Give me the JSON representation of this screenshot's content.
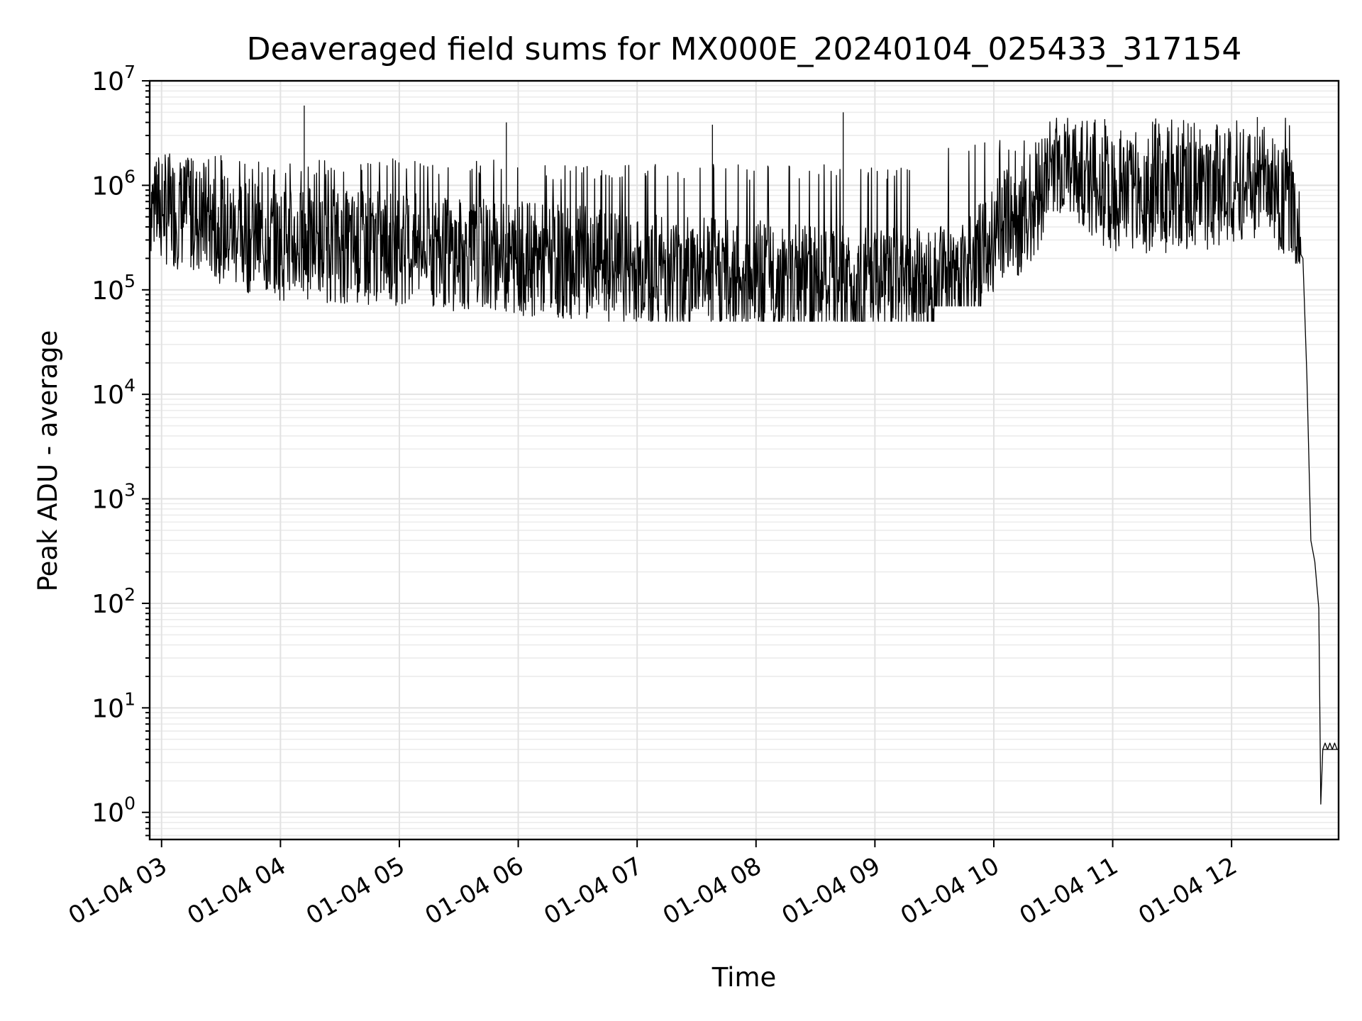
{
  "chart_data": {
    "type": "line",
    "title": "Deaveraged field sums for MX000E_20240104_025433_317154",
    "xlabel": "Time",
    "ylabel": "Peak ADU - average",
    "yscale": "log",
    "ylim": [
      0.55,
      10000000
    ],
    "xlim": [
      "2024-01-04 02:54",
      "2024-01-04 12:54"
    ],
    "grid": true,
    "legend": "none",
    "line_color": "#000000",
    "x_ticks": [
      {
        "value": "2024-01-04 03:00",
        "label": "01-04 03"
      },
      {
        "value": "2024-01-04 04:00",
        "label": "01-04 04"
      },
      {
        "value": "2024-01-04 05:00",
        "label": "01-04 05"
      },
      {
        "value": "2024-01-04 06:00",
        "label": "01-04 06"
      },
      {
        "value": "2024-01-04 07:00",
        "label": "01-04 07"
      },
      {
        "value": "2024-01-04 08:00",
        "label": "01-04 08"
      },
      {
        "value": "2024-01-04 09:00",
        "label": "01-04 09"
      },
      {
        "value": "2024-01-04 10:00",
        "label": "01-04 10"
      },
      {
        "value": "2024-01-04 11:00",
        "label": "01-04 11"
      },
      {
        "value": "2024-01-04 12:00",
        "label": "01-04 12"
      }
    ],
    "y_ticks": [
      {
        "value": 1,
        "base": "10",
        "exp": "0"
      },
      {
        "value": 10,
        "base": "10",
        "exp": "1"
      },
      {
        "value": 100,
        "base": "10",
        "exp": "2"
      },
      {
        "value": 1000,
        "base": "10",
        "exp": "3"
      },
      {
        "value": 10000,
        "base": "10",
        "exp": "4"
      },
      {
        "value": 100000,
        "base": "10",
        "exp": "5"
      },
      {
        "value": 1000000,
        "base": "10",
        "exp": "6"
      },
      {
        "value": 10000000,
        "base": "10",
        "exp": "7"
      }
    ],
    "series": [
      {
        "name": "",
        "points": [
          [
            "2024-01-04 02:54",
            700000
          ],
          [
            "2024-01-04 03:00",
            600000
          ],
          [
            "2024-01-04 03:10",
            550000
          ],
          [
            "2024-01-04 03:20",
            480000
          ],
          [
            "2024-01-04 03:30",
            400000
          ],
          [
            "2024-01-04 03:45",
            320000
          ],
          [
            "2024-01-04 04:00",
            280000
          ],
          [
            "2024-01-04 04:30",
            260000
          ],
          [
            "2024-01-04 05:00",
            250000
          ],
          [
            "2024-01-04 05:30",
            220000
          ],
          [
            "2024-01-04 06:00",
            200000
          ],
          [
            "2024-01-04 06:30",
            180000
          ],
          [
            "2024-01-04 07:00",
            160000
          ],
          [
            "2024-01-04 07:30",
            150000
          ],
          [
            "2024-01-04 08:00",
            130000
          ],
          [
            "2024-01-04 08:30",
            120000
          ],
          [
            "2024-01-04 09:00",
            110000
          ],
          [
            "2024-01-04 09:30",
            110000
          ],
          [
            "2024-01-04 09:50",
            150000
          ],
          [
            "2024-01-04 10:00",
            350000
          ],
          [
            "2024-01-04 10:15",
            500000
          ],
          [
            "2024-01-04 10:30",
            1500000
          ],
          [
            "2024-01-04 10:45",
            1100000
          ],
          [
            "2024-01-04 11:00",
            800000
          ],
          [
            "2024-01-04 11:30",
            800000
          ],
          [
            "2024-01-04 12:00",
            900000
          ],
          [
            "2024-01-04 12:15",
            1100000
          ],
          [
            "2024-01-04 12:30",
            600000
          ],
          [
            "2024-01-04 12:36",
            200000
          ],
          [
            "2024-01-04 12:38",
            15000
          ],
          [
            "2024-01-04 12:40",
            400
          ],
          [
            "2024-01-04 12:42",
            250
          ],
          [
            "2024-01-04 12:44",
            90
          ],
          [
            "2024-01-04 12:45",
            1.2
          ],
          [
            "2024-01-04 12:46",
            4
          ],
          [
            "2024-01-04 12:54",
            4
          ]
        ],
        "spikes": [
          [
            "2024-01-04 04:12",
            5800000
          ],
          [
            "2024-01-04 05:54",
            4000000
          ],
          [
            "2024-01-04 07:38",
            3800000
          ],
          [
            "2024-01-04 08:44",
            5000000
          ],
          [
            "2024-01-04 10:56",
            4300000
          ],
          [
            "2024-01-04 12:13",
            4500000
          ]
        ],
        "band": {
          "description_ranges": [
            [
              "2024-01-04 02:54",
              "2024-01-04 03:30",
              80000,
              2000000
            ],
            [
              "2024-01-04 03:30",
              "2024-01-04 06:00",
              55000,
              1800000
            ],
            [
              "2024-01-04 06:00",
              "2024-01-04 09:30",
              50000,
              1600000
            ],
            [
              "2024-01-04 09:30",
              "2024-01-04 10:28",
              70000,
              2800000
            ],
            [
              "2024-01-04 10:28",
              "2024-01-04 12:35",
              180000,
              4400000
            ]
          ]
        }
      }
    ]
  }
}
